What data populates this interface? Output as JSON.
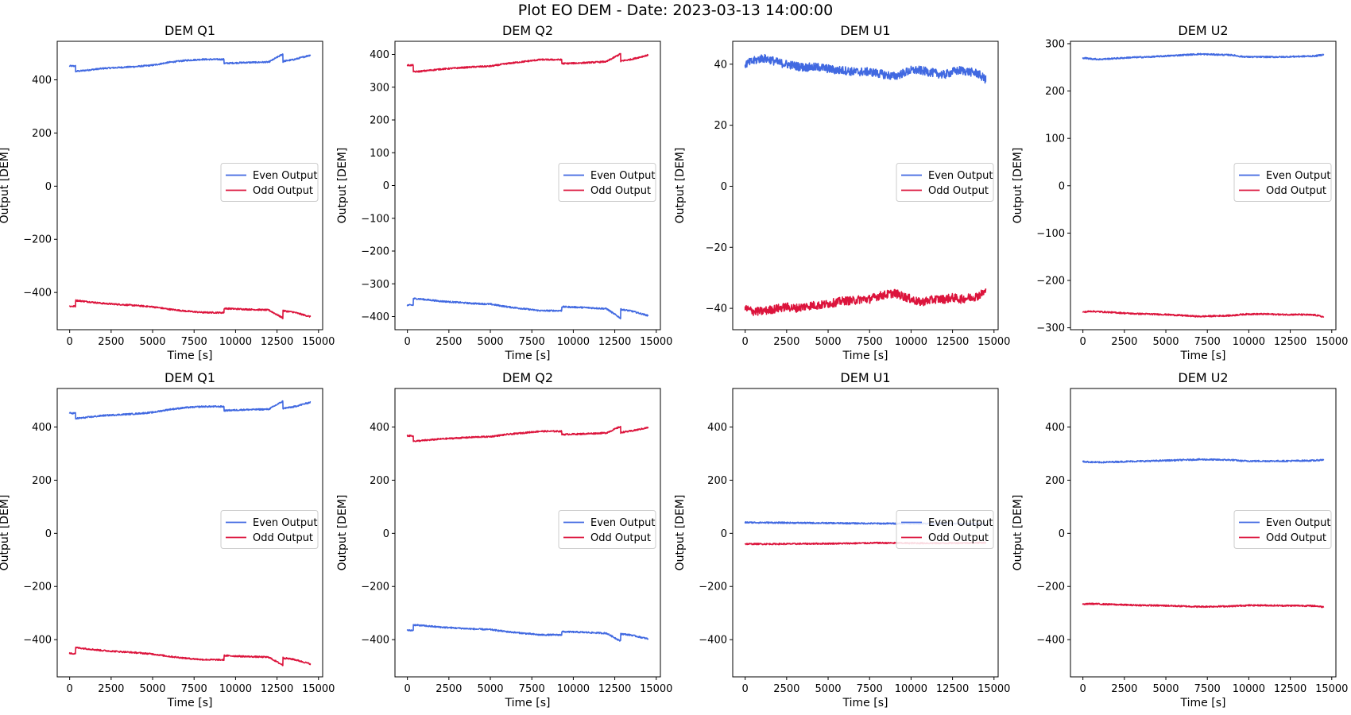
{
  "suptitle": "Plot EO DEM - Date: 2023-03-13 14:00:00",
  "colors": {
    "even": "#4169E1",
    "odd": "#DC143C"
  },
  "chart_data": [
    {
      "type": "line",
      "title": "DEM Q1",
      "xlabel": "Time [s]",
      "ylabel": "Output [DEM]",
      "xlim": [
        -750,
        15250
      ],
      "ylim": [
        -540,
        545
      ],
      "xticks": [
        0,
        2500,
        5000,
        7500,
        10000,
        12500,
        15000
      ],
      "yticks": [
        -400,
        -200,
        0,
        200,
        400
      ],
      "legend": "center-right",
      "series": [
        {
          "name": "Even Output",
          "x": [
            0,
            350,
            360,
            700,
            2000,
            4000,
            5000,
            6000,
            7000,
            8000,
            9300,
            9310,
            10500,
            12000,
            12850,
            12860,
            12870,
            13500,
            14500
          ],
          "values": [
            452,
            452,
            432,
            434,
            443,
            450,
            455,
            466,
            473,
            477,
            477,
            462,
            465,
            467,
            497,
            468,
            470,
            476,
            493
          ]
        },
        {
          "name": "Odd Output",
          "x": [
            0,
            350,
            360,
            700,
            2000,
            4000,
            5000,
            6000,
            7000,
            8000,
            9300,
            9310,
            10500,
            12000,
            12850,
            12860,
            12870,
            13500,
            14500
          ],
          "values": [
            -452,
            -452,
            -430,
            -432,
            -441,
            -449,
            -454,
            -463,
            -470,
            -475,
            -476,
            -460,
            -463,
            -466,
            -496,
            -466,
            -469,
            -474,
            -491
          ]
        }
      ]
    },
    {
      "type": "line",
      "title": "DEM Q2",
      "xlabel": "Time [s]",
      "ylabel": "Output [DEM]",
      "xlim": [
        -750,
        15250
      ],
      "ylim": [
        -440,
        440
      ],
      "xticks": [
        0,
        2500,
        5000,
        7500,
        10000,
        12500,
        15000
      ],
      "yticks": [
        -400,
        -300,
        -200,
        -100,
        0,
        100,
        200,
        300,
        400
      ],
      "legend": "center-right",
      "series": [
        {
          "name": "Even Output",
          "x": [
            0,
            350,
            360,
            700,
            2000,
            4000,
            5000,
            6000,
            7000,
            8000,
            9300,
            9310,
            10500,
            12000,
            12850,
            12860,
            12870,
            13500,
            14500
          ],
          "values": [
            -365,
            -365,
            -345,
            -346,
            -353,
            -360,
            -362,
            -370,
            -376,
            -382,
            -382,
            -370,
            -372,
            -376,
            -405,
            -375,
            -378,
            -383,
            -397
          ]
        },
        {
          "name": "Odd Output",
          "x": [
            0,
            350,
            360,
            700,
            2000,
            4000,
            5000,
            6000,
            7000,
            8000,
            9300,
            9310,
            10500,
            12000,
            12850,
            12860,
            12870,
            13500,
            14500
          ],
          "values": [
            367,
            367,
            347,
            348,
            355,
            362,
            364,
            372,
            378,
            384,
            384,
            372,
            374,
            378,
            402,
            377,
            380,
            385,
            398
          ]
        }
      ]
    },
    {
      "type": "line",
      "title": "DEM U1",
      "xlabel": "Time [s]",
      "ylabel": "Output [DEM]",
      "xlim": [
        -750,
        15250
      ],
      "ylim": [
        -47,
        47.5
      ],
      "xticks": [
        0,
        2500,
        5000,
        7500,
        10000,
        12500,
        15000
      ],
      "yticks": [
        -40,
        -20,
        0,
        20,
        40
      ],
      "legend": "center-right",
      "series": [
        {
          "name": "Even Output",
          "x": [
            0,
            500,
            1000,
            1500,
            2000,
            2500,
            3000,
            3500,
            4000,
            4500,
            5000,
            5500,
            6000,
            6500,
            7000,
            7500,
            8000,
            8500,
            9000,
            9500,
            10000,
            10500,
            11000,
            11500,
            12000,
            12500,
            13000,
            13500,
            14000,
            14500
          ],
          "values": [
            40,
            41,
            42,
            41.5,
            40.5,
            40,
            39.5,
            39,
            39,
            39,
            38.5,
            38,
            38,
            37.5,
            37.5,
            37.5,
            37,
            36.5,
            36,
            37,
            38,
            38,
            37.5,
            37,
            36.5,
            37.5,
            38,
            37.5,
            37,
            35
          ]
        },
        {
          "name": "Odd Output",
          "x": [
            0,
            500,
            1000,
            1500,
            2000,
            2500,
            3000,
            3500,
            4000,
            4500,
            5000,
            5500,
            6000,
            6500,
            7000,
            7500,
            8000,
            8500,
            9000,
            9500,
            10000,
            10500,
            11000,
            11500,
            12000,
            12500,
            13000,
            13500,
            14000,
            14500
          ],
          "values": [
            -40,
            -41,
            -41,
            -40.5,
            -40,
            -39.5,
            -40,
            -39.5,
            -39,
            -39,
            -38.5,
            -38,
            -37.5,
            -37.5,
            -37,
            -37,
            -36,
            -35.5,
            -35,
            -36,
            -37,
            -38,
            -37.5,
            -37,
            -37,
            -36.5,
            -37,
            -36.5,
            -36,
            -34.5
          ]
        }
      ]
    },
    {
      "type": "line",
      "title": "DEM U2",
      "xlabel": "Time [s]",
      "ylabel": "Output [DEM]",
      "xlim": [
        -750,
        15250
      ],
      "ylim": [
        -304,
        305
      ],
      "xticks": [
        0,
        2500,
        5000,
        7500,
        10000,
        12500,
        15000
      ],
      "yticks": [
        -300,
        -200,
        -100,
        0,
        100,
        200,
        300
      ],
      "legend": "center-right",
      "series": [
        {
          "name": "Even Output",
          "x": [
            0,
            500,
            1000,
            2000,
            3000,
            4000,
            5000,
            6000,
            7000,
            8000,
            9000,
            9500,
            10000,
            11000,
            12000,
            13000,
            14000,
            14500
          ],
          "values": [
            270,
            268,
            267,
            269,
            271,
            272,
            274,
            276,
            278,
            277,
            276,
            273,
            272,
            272,
            272,
            273,
            274,
            277
          ]
        },
        {
          "name": "Odd Output",
          "x": [
            0,
            500,
            1000,
            2000,
            3000,
            4000,
            5000,
            6000,
            7000,
            8000,
            9000,
            9500,
            10000,
            11000,
            12000,
            13000,
            14000,
            14500
          ],
          "values": [
            -267,
            -265,
            -266,
            -268,
            -270,
            -271,
            -272,
            -274,
            -276,
            -275,
            -274,
            -272,
            -271,
            -271,
            -272,
            -272,
            -273,
            -277
          ]
        }
      ]
    },
    {
      "type": "line",
      "title": "DEM Q1",
      "xlabel": "Time [s]",
      "ylabel": "Output [DEM]",
      "xlim": [
        -750,
        15250
      ],
      "ylim": [
        -540,
        545
      ],
      "xticks": [
        0,
        2500,
        5000,
        7500,
        10000,
        12500,
        15000
      ],
      "yticks": [
        -400,
        -200,
        0,
        200,
        400
      ],
      "legend": "center-right",
      "series": [
        {
          "name": "Even Output",
          "x": [
            0,
            350,
            360,
            700,
            2000,
            4000,
            5000,
            6000,
            7000,
            8000,
            9300,
            9310,
            10500,
            12000,
            12850,
            12860,
            12870,
            13500,
            14500
          ],
          "values": [
            452,
            452,
            432,
            434,
            443,
            450,
            455,
            466,
            473,
            477,
            477,
            462,
            465,
            467,
            497,
            468,
            470,
            476,
            493
          ]
        },
        {
          "name": "Odd Output",
          "x": [
            0,
            350,
            360,
            700,
            2000,
            4000,
            5000,
            6000,
            7000,
            8000,
            9300,
            9310,
            10500,
            12000,
            12850,
            12860,
            12870,
            13500,
            14500
          ],
          "values": [
            -452,
            -452,
            -430,
            -432,
            -441,
            -449,
            -454,
            -463,
            -470,
            -475,
            -476,
            -460,
            -463,
            -466,
            -496,
            -466,
            -469,
            -474,
            -491
          ]
        }
      ]
    },
    {
      "type": "line",
      "title": "DEM Q2",
      "xlabel": "Time [s]",
      "ylabel": "Output [DEM]",
      "xlim": [
        -750,
        15250
      ],
      "ylim": [
        -540,
        545
      ],
      "xticks": [
        0,
        2500,
        5000,
        7500,
        10000,
        12500,
        15000
      ],
      "yticks": [
        -400,
        -200,
        0,
        200,
        400
      ],
      "legend": "center-right",
      "series": [
        {
          "name": "Even Output",
          "x": [
            0,
            350,
            360,
            700,
            2000,
            4000,
            5000,
            6000,
            7000,
            8000,
            9300,
            9310,
            10500,
            12000,
            12850,
            12860,
            12870,
            13500,
            14500
          ],
          "values": [
            -365,
            -365,
            -345,
            -346,
            -353,
            -360,
            -362,
            -370,
            -376,
            -382,
            -382,
            -370,
            -372,
            -376,
            -405,
            -375,
            -378,
            -383,
            -397
          ]
        },
        {
          "name": "Odd Output",
          "x": [
            0,
            350,
            360,
            700,
            2000,
            4000,
            5000,
            6000,
            7000,
            8000,
            9300,
            9310,
            10500,
            12000,
            12850,
            12860,
            12870,
            13500,
            14500
          ],
          "values": [
            367,
            367,
            347,
            348,
            355,
            362,
            364,
            372,
            378,
            384,
            384,
            372,
            374,
            378,
            402,
            377,
            380,
            385,
            398
          ]
        }
      ]
    },
    {
      "type": "line",
      "title": "DEM U1",
      "xlabel": "Time [s]",
      "ylabel": "Output [DEM]",
      "xlim": [
        -750,
        15250
      ],
      "ylim": [
        -540,
        545
      ],
      "xticks": [
        0,
        2500,
        5000,
        7500,
        10000,
        12500,
        15000
      ],
      "yticks": [
        -400,
        -200,
        0,
        200,
        400
      ],
      "legend": "center-right",
      "series": [
        {
          "name": "Even Output",
          "x": [
            0,
            2000,
            4000,
            6000,
            8000,
            10000,
            12000,
            14500
          ],
          "values": [
            41,
            40,
            39,
            38,
            37,
            37,
            37,
            35
          ]
        },
        {
          "name": "Odd Output",
          "x": [
            0,
            2000,
            4000,
            6000,
            8000,
            10000,
            12000,
            14500
          ],
          "values": [
            -40,
            -40,
            -39,
            -38,
            -36,
            -37,
            -37,
            -35
          ]
        }
      ]
    },
    {
      "type": "line",
      "title": "DEM U2",
      "xlabel": "Time [s]",
      "ylabel": "Output [DEM]",
      "xlim": [
        -750,
        15250
      ],
      "ylim": [
        -540,
        545
      ],
      "xticks": [
        0,
        2500,
        5000,
        7500,
        10000,
        12500,
        15000
      ],
      "yticks": [
        -400,
        -200,
        0,
        200,
        400
      ],
      "legend": "center-right",
      "series": [
        {
          "name": "Even Output",
          "x": [
            0,
            500,
            1000,
            2000,
            3000,
            4000,
            5000,
            6000,
            7000,
            8000,
            9000,
            9500,
            10000,
            11000,
            12000,
            13000,
            14000,
            14500
          ],
          "values": [
            270,
            268,
            267,
            269,
            271,
            272,
            274,
            276,
            278,
            277,
            276,
            273,
            272,
            272,
            272,
            273,
            274,
            277
          ]
        },
        {
          "name": "Odd Output",
          "x": [
            0,
            500,
            1000,
            2000,
            3000,
            4000,
            5000,
            6000,
            7000,
            8000,
            9000,
            9500,
            10000,
            11000,
            12000,
            13000,
            14000,
            14500
          ],
          "values": [
            -267,
            -265,
            -266,
            -268,
            -270,
            -271,
            -272,
            -274,
            -276,
            -275,
            -274,
            -272,
            -271,
            -271,
            -272,
            -272,
            -273,
            -277
          ]
        }
      ]
    }
  ]
}
